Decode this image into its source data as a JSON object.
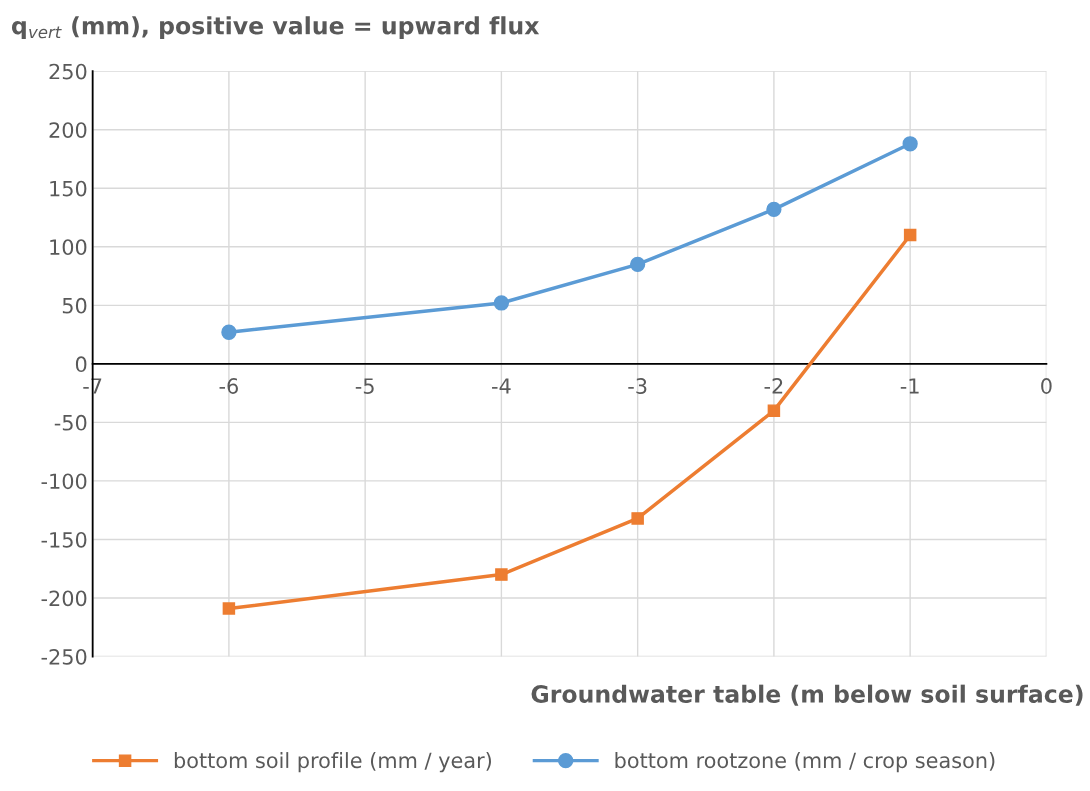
{
  "chart_data": {
    "type": "line",
    "ylabel": "q$_{vert}$ (mm), positive value = upward flux",
    "xlabel": "Groundwater table (m below soil surface)",
    "x": [
      -6,
      -4,
      -3,
      -2,
      -1
    ],
    "series": [
      {
        "name": "bottom soil profile (mm / year)",
        "color": "#ed7d31",
        "marker": "square",
        "values": [
          -209,
          -180,
          -132,
          -40,
          110
        ]
      },
      {
        "name": "bottom rootzone (mm / crop season)",
        "color": "#5b9bd5",
        "marker": "circle",
        "values": [
          27,
          52,
          85,
          132,
          188
        ]
      }
    ],
    "xlim": [
      -7,
      0
    ],
    "xticks": [
      -7,
      -6,
      -5,
      -4,
      -3,
      -2,
      -1,
      0
    ],
    "ylim": [
      -250,
      250
    ],
    "yticks": [
      -250,
      -200,
      -150,
      -100,
      -50,
      0,
      50,
      100,
      150,
      200,
      250
    ],
    "grid": true,
    "legend": "bottom",
    "line_style": "solid"
  }
}
